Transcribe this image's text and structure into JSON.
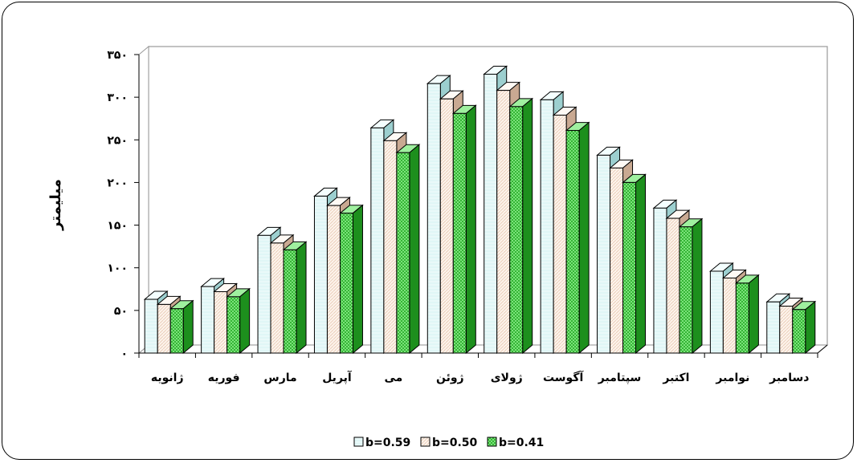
{
  "chart_data": {
    "type": "bar",
    "categories": [
      "ژانویه",
      "فوریه",
      "مارس",
      "آپریل",
      "می",
      "ژوئن",
      "ژولای",
      "آگوست",
      "سپتامبر",
      "اکتبر",
      "نوامبر",
      "دسامبر"
    ],
    "ylabel": "میلیمتر",
    "ylim": [
      0,
      350
    ],
    "yticks": [
      0,
      50,
      100,
      150,
      200,
      250,
      300,
      350
    ],
    "ytick_labels": [
      "۰",
      "۵۰",
      "۱۰۰",
      "۱۵۰",
      "۲۰۰",
      "۲۵۰",
      "۳۰۰",
      "۳۵۰"
    ],
    "legend_position": "bottom",
    "series": [
      {
        "name": "b=0.59",
        "color": "#e6f7f7",
        "values": [
          63,
          78,
          138,
          184,
          264,
          316,
          327,
          297,
          232,
          170,
          96,
          60
        ]
      },
      {
        "name": "b=0.50",
        "color": "#fbeee3",
        "values": [
          57,
          72,
          129,
          173,
          249,
          298,
          308,
          279,
          217,
          158,
          88,
          55
        ]
      },
      {
        "name": "b=0.41",
        "color": "#33cc33",
        "values": [
          52,
          66,
          121,
          164,
          235,
          281,
          289,
          261,
          200,
          148,
          82,
          51
        ]
      }
    ]
  }
}
